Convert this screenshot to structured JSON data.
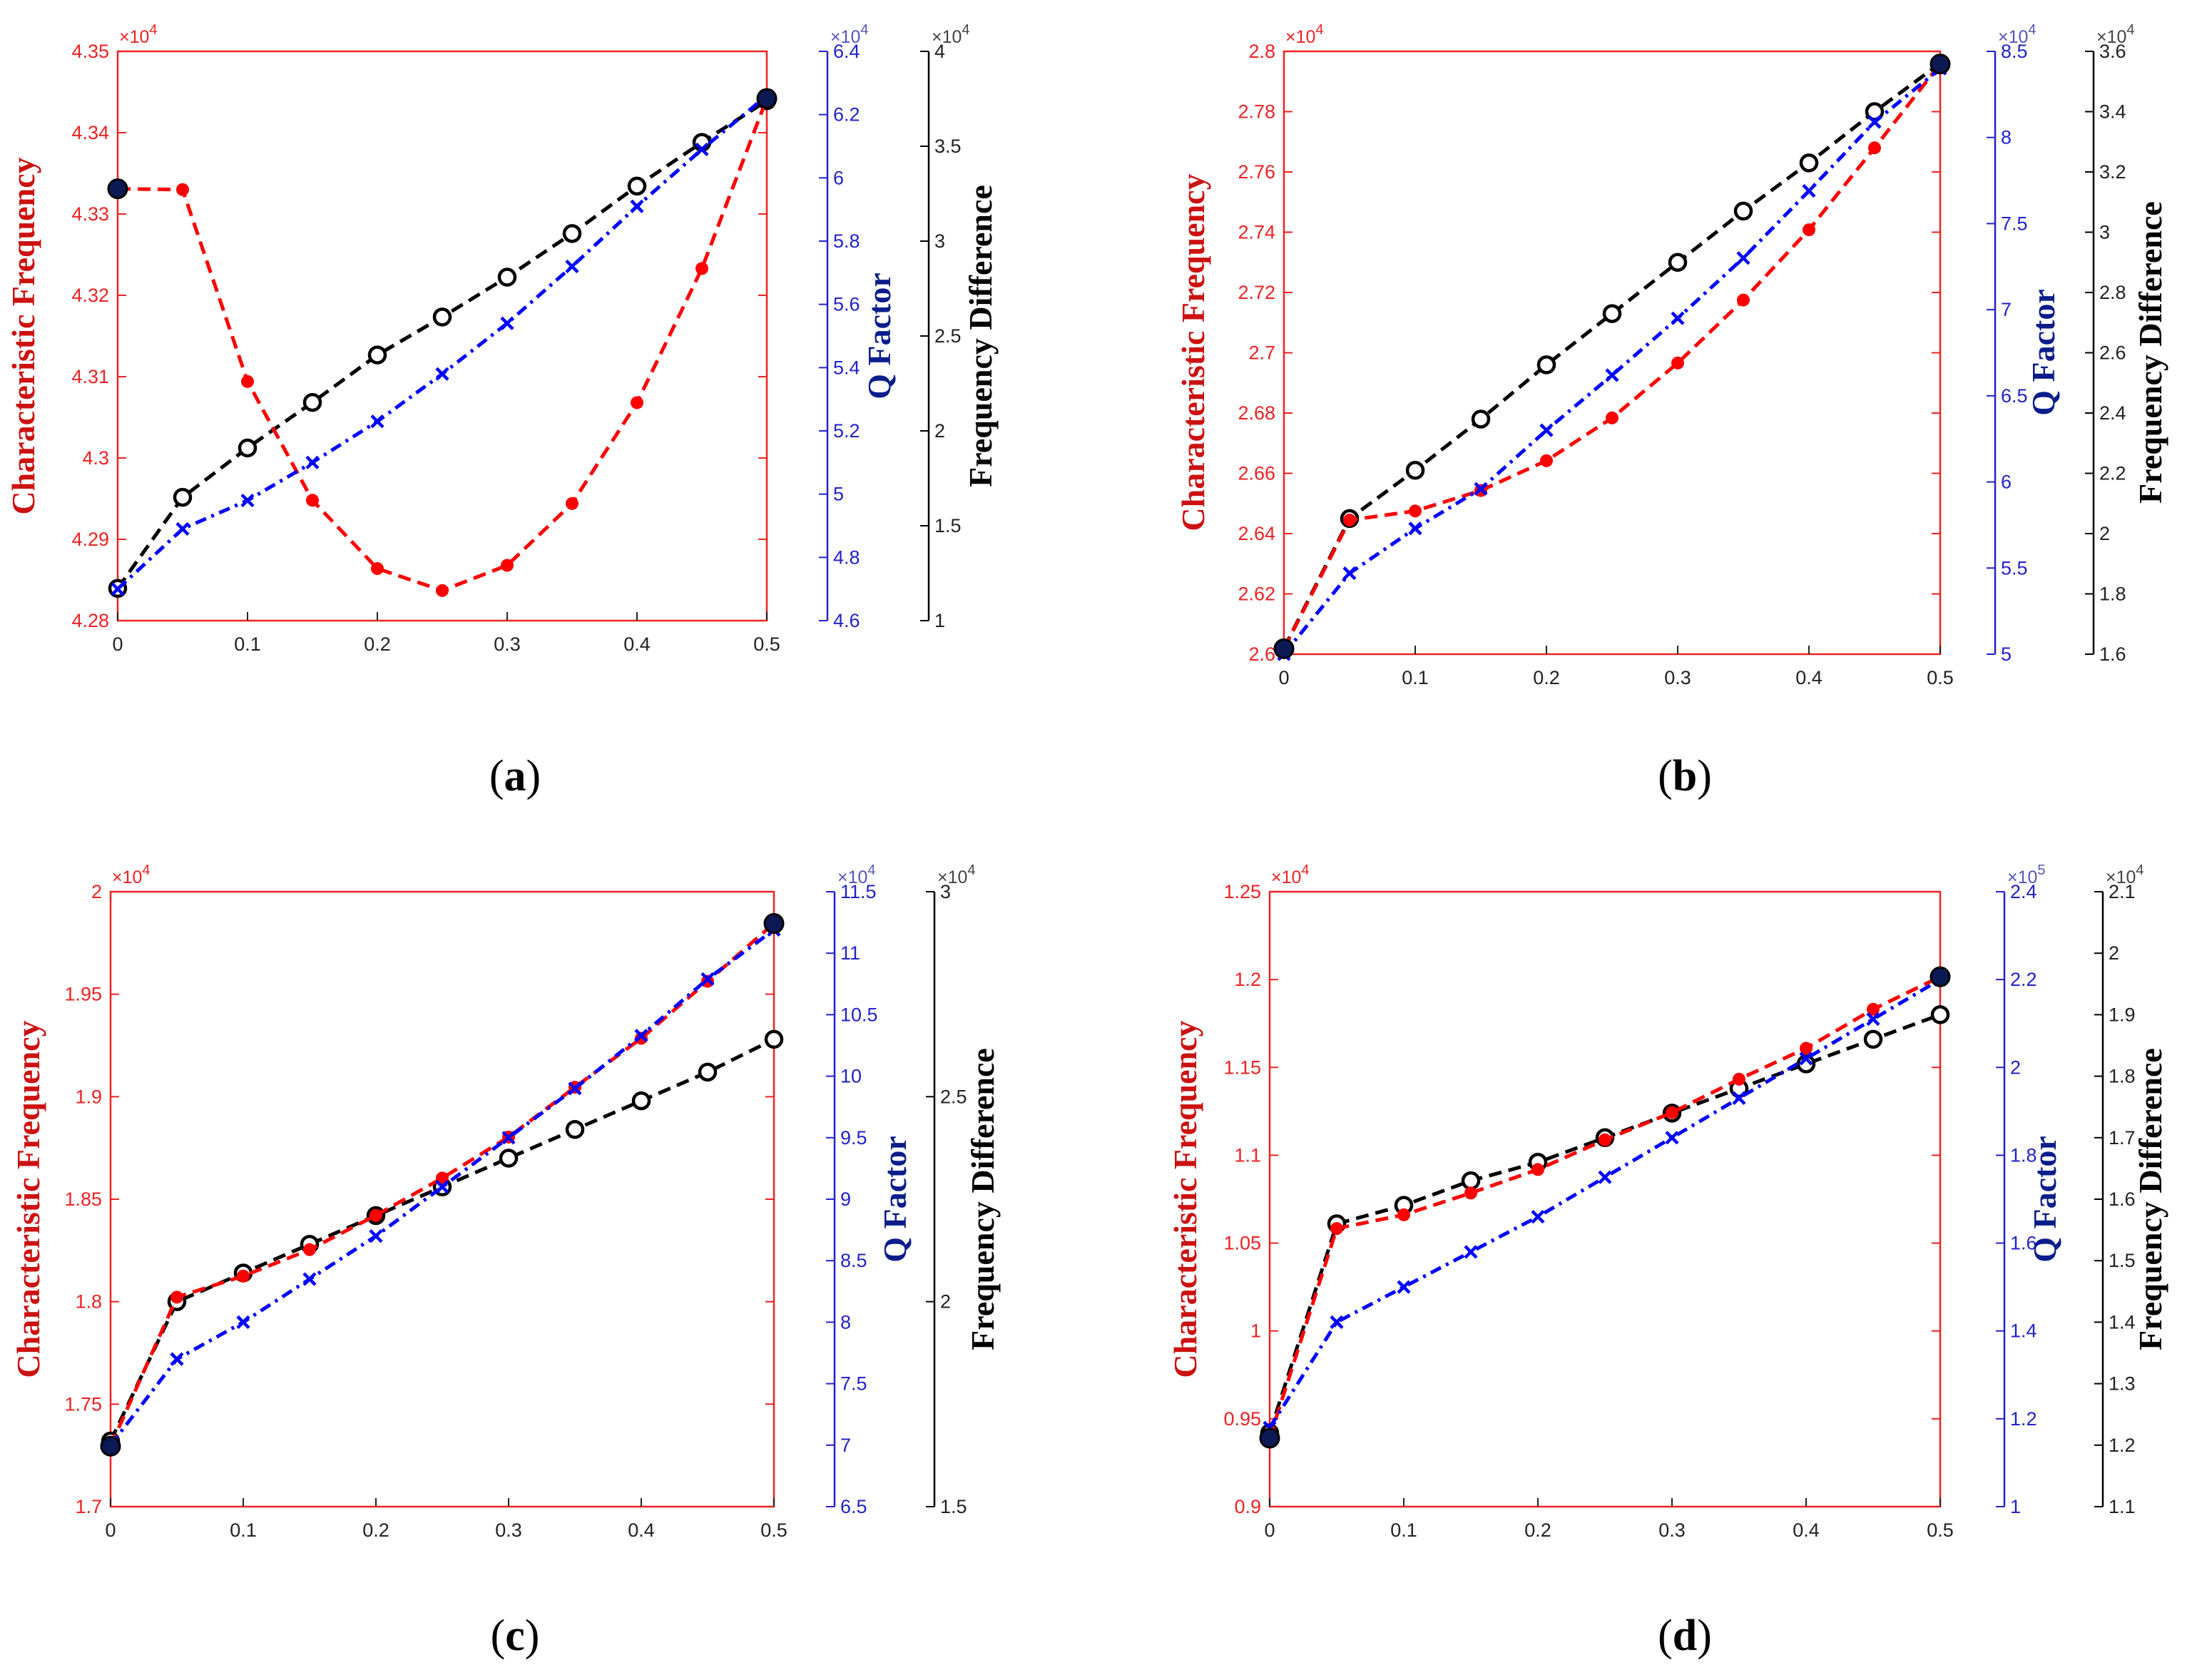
{
  "colors": {
    "freq": "#ff0000",
    "q": "#0000ff",
    "diff": "#000000",
    "axis_red": "#ee2222",
    "axis_blue": "#2222cc",
    "exp_blue": "#5555bb"
  },
  "chart_data": [
    {
      "type": "line",
      "panel": "(a)",
      "panel_letter": "a",
      "x": [
        0,
        0.05,
        0.1,
        0.15,
        0.2,
        0.25,
        0.3,
        0.35,
        0.4,
        0.45,
        0.5
      ],
      "xlim": [
        0,
        0.5
      ],
      "xticks": [
        "0",
        "0.1",
        "0.2",
        "0.3",
        "0.4",
        "0.5"
      ],
      "xtick_values": [
        0,
        0.1,
        0.2,
        0.3,
        0.4,
        0.5
      ],
      "axes": {
        "freq": {
          "label": "Characteristic Frequency",
          "exp": "×10",
          "exp_pow": "4",
          "lim": [
            4.28,
            4.35
          ],
          "ticks": [
            "4.28",
            "4.29",
            "4.3",
            "4.31",
            "4.32",
            "4.33",
            "4.34",
            "4.35"
          ],
          "tick_values": [
            4.28,
            4.29,
            4.3,
            4.31,
            4.32,
            4.33,
            4.34,
            4.35
          ]
        },
        "q": {
          "label": "Q Factor",
          "exp": "×10",
          "exp_pow": "4",
          "lim": [
            4.6,
            6.4
          ],
          "ticks": [
            "4.6",
            "4.8",
            "5",
            "5.2",
            "5.4",
            "5.6",
            "5.8",
            "6",
            "6.2",
            "6.4"
          ],
          "tick_values": [
            4.6,
            4.8,
            5.0,
            5.2,
            5.4,
            5.6,
            5.8,
            6.0,
            6.2,
            6.4
          ]
        },
        "diff": {
          "label": "Frequency Difference",
          "exp": "×10",
          "exp_pow": "4",
          "lim": [
            1,
            4
          ],
          "ticks": [
            "1",
            "1.5",
            "2",
            "2.5",
            "3",
            "3.5",
            "4"
          ],
          "tick_values": [
            1,
            1.5,
            2,
            2.5,
            3,
            3.5,
            4
          ]
        }
      },
      "series": [
        {
          "name": "Characteristic Frequency",
          "axis": "freq",
          "marker": "dot",
          "style": "dashed",
          "values": [
            4.3331,
            4.333,
            4.3094,
            4.2948,
            4.2864,
            4.2837,
            4.2868,
            4.2944,
            4.3068,
            4.3233,
            4.3442
          ]
        },
        {
          "name": "Q Factor",
          "axis": "q",
          "marker": "x",
          "style": "dashdot",
          "values": [
            4.7,
            4.89,
            4.98,
            5.1,
            5.23,
            5.38,
            5.54,
            5.72,
            5.91,
            6.09,
            6.26
          ]
        },
        {
          "name": "Frequency Difference",
          "axis": "diff",
          "marker": "circle",
          "style": "dashed",
          "values": [
            1.17,
            1.65,
            1.91,
            2.15,
            2.4,
            2.6,
            2.81,
            3.04,
            3.29,
            3.52,
            3.74
          ]
        }
      ]
    },
    {
      "type": "line",
      "panel": "(b)",
      "panel_letter": "b",
      "x": [
        0,
        0.05,
        0.1,
        0.15,
        0.2,
        0.25,
        0.3,
        0.35,
        0.4,
        0.45,
        0.5
      ],
      "xlim": [
        0,
        0.5
      ],
      "xticks": [
        "0",
        "0.1",
        "0.2",
        "0.3",
        "0.4",
        "0.5"
      ],
      "xtick_values": [
        0,
        0.1,
        0.2,
        0.3,
        0.4,
        0.5
      ],
      "axes": {
        "freq": {
          "label": "Characteristic Frequency",
          "exp": "×10",
          "exp_pow": "4",
          "lim": [
            2.6,
            2.8
          ],
          "ticks": [
            "2.6",
            "2.62",
            "2.64",
            "2.66",
            "2.68",
            "2.7",
            "2.72",
            "2.74",
            "2.76",
            "2.78",
            "2.8"
          ],
          "tick_values": [
            2.6,
            2.62,
            2.64,
            2.66,
            2.68,
            2.7,
            2.72,
            2.74,
            2.76,
            2.78,
            2.8
          ]
        },
        "q": {
          "label": "Q Factor",
          "exp": "×10",
          "exp_pow": "4",
          "lim": [
            5,
            8.5
          ],
          "ticks": [
            "5",
            "5.5",
            "6",
            "6.5",
            "7",
            "7.5",
            "8",
            "8.5"
          ],
          "tick_values": [
            5,
            5.5,
            6,
            6.5,
            7,
            7.5,
            8,
            8.5
          ]
        },
        "diff": {
          "label": "Frequency Difference",
          "exp": "×10",
          "exp_pow": "4",
          "lim": [
            1.6,
            3.6
          ],
          "ticks": [
            "1.6",
            "1.8",
            "2",
            "2.2",
            "2.4",
            "2.6",
            "2.8",
            "3",
            "3.2",
            "3.4",
            "3.6"
          ],
          "tick_values": [
            1.6,
            1.8,
            2.0,
            2.2,
            2.4,
            2.6,
            2.8,
            3.0,
            3.2,
            3.4,
            3.6
          ]
        }
      },
      "series": [
        {
          "name": "Characteristic Frequency",
          "axis": "freq",
          "marker": "dot",
          "style": "dashed",
          "values": [
            2.6018,
            2.6445,
            2.6475,
            2.6543,
            2.6642,
            2.6784,
            2.6966,
            2.7175,
            2.7408,
            2.768,
            2.7958
          ]
        },
        {
          "name": "Q Factor",
          "axis": "q",
          "marker": "x",
          "style": "dashdot",
          "values": [
            5.0,
            5.47,
            5.73,
            5.96,
            6.3,
            6.62,
            6.95,
            7.3,
            7.69,
            8.09,
            8.4
          ]
        },
        {
          "name": "Frequency Difference",
          "axis": "diff",
          "marker": "circle",
          "style": "dashed",
          "values": [
            1.62,
            2.05,
            2.21,
            2.38,
            2.56,
            2.73,
            2.9,
            3.07,
            3.23,
            3.4,
            3.56
          ]
        }
      ]
    },
    {
      "type": "line",
      "panel": "(c)",
      "panel_letter": "c",
      "x": [
        0,
        0.05,
        0.1,
        0.15,
        0.2,
        0.25,
        0.3,
        0.35,
        0.4,
        0.45,
        0.5
      ],
      "xlim": [
        0,
        0.5
      ],
      "xticks": [
        "0",
        "0.1",
        "0.2",
        "0.3",
        "0.4",
        "0.5"
      ],
      "xtick_values": [
        0,
        0.1,
        0.2,
        0.3,
        0.4,
        0.5
      ],
      "axes": {
        "freq": {
          "label": "Characteristic Frequency",
          "exp": "×10",
          "exp_pow": "4",
          "lim": [
            1.7,
            2.0
          ],
          "ticks": [
            "1.7",
            "1.75",
            "1.8",
            "1.85",
            "1.9",
            "1.95",
            "2"
          ],
          "tick_values": [
            1.7,
            1.75,
            1.8,
            1.85,
            1.9,
            1.95,
            2.0
          ]
        },
        "q": {
          "label": "Q Factor",
          "exp": "×10",
          "exp_pow": "4",
          "lim": [
            6.5,
            11.5
          ],
          "ticks": [
            "6.5",
            "7",
            "7.5",
            "8",
            "8.5",
            "9",
            "9.5",
            "10",
            "10.5",
            "11",
            "11.5"
          ],
          "tick_values": [
            6.5,
            7,
            7.5,
            8,
            8.5,
            9,
            9.5,
            10,
            10.5,
            11,
            11.5
          ]
        },
        "diff": {
          "label": "Frequency Difference",
          "exp": "×10",
          "exp_pow": "4",
          "lim": [
            1.5,
            3
          ],
          "ticks": [
            "1.5",
            "2",
            "2.5",
            "3"
          ],
          "tick_values": [
            1.5,
            2,
            2.5,
            3
          ]
        }
      },
      "series": [
        {
          "name": "Characteristic Frequency",
          "axis": "freq",
          "marker": "dot",
          "style": "dashed",
          "values": [
            1.7295,
            1.8022,
            1.8125,
            1.8254,
            1.8421,
            1.8603,
            1.8803,
            1.9046,
            1.9285,
            1.9563,
            1.9845
          ]
        },
        {
          "name": "Q Factor",
          "axis": "q",
          "marker": "x",
          "style": "dashdot",
          "values": [
            7.0,
            7.7,
            8.0,
            8.35,
            8.7,
            9.1,
            9.5,
            9.9,
            10.33,
            10.79,
            11.19
          ]
        },
        {
          "name": "Frequency Difference",
          "axis": "diff",
          "marker": "circle",
          "style": "dashed",
          "values": [
            1.66,
            2.0,
            2.07,
            2.14,
            2.21,
            2.28,
            2.35,
            2.42,
            2.49,
            2.56,
            2.64
          ]
        }
      ]
    },
    {
      "type": "line",
      "panel": "(d)",
      "panel_letter": "d",
      "x": [
        0,
        0.05,
        0.1,
        0.15,
        0.2,
        0.25,
        0.3,
        0.35,
        0.4,
        0.45,
        0.5
      ],
      "xlim": [
        0,
        0.5
      ],
      "xticks": [
        "0",
        "0.1",
        "0.2",
        "0.3",
        "0.4",
        "0.5"
      ],
      "xtick_values": [
        0,
        0.1,
        0.2,
        0.3,
        0.4,
        0.5
      ],
      "axes": {
        "freq": {
          "label": "Characteristic Frequency",
          "exp": "×10",
          "exp_pow": "4",
          "lim": [
            0.9,
            1.25
          ],
          "ticks": [
            "0.9",
            "0.95",
            "1",
            "1.05",
            "1.1",
            "1.15",
            "1.2",
            "1.25"
          ],
          "tick_values": [
            0.9,
            0.95,
            1.0,
            1.05,
            1.1,
            1.15,
            1.2,
            1.25
          ]
        },
        "q": {
          "label": "Q Factor",
          "exp": "×10",
          "exp_pow": "5",
          "lim": [
            1,
            2.4
          ],
          "ticks": [
            "1",
            "1.2",
            "1.4",
            "1.6",
            "1.8",
            "2",
            "2.2",
            "2.4"
          ],
          "tick_values": [
            1.0,
            1.2,
            1.4,
            1.6,
            1.8,
            2.0,
            2.2,
            2.4
          ]
        },
        "diff": {
          "label": "Frequency Difference",
          "exp": "×10",
          "exp_pow": "4",
          "lim": [
            1.1,
            2.1
          ],
          "ticks": [
            "1.1",
            "1.2",
            "1.3",
            "1.4",
            "1.5",
            "1.6",
            "1.7",
            "1.8",
            "1.9",
            "2",
            "2.1"
          ],
          "tick_values": [
            1.1,
            1.2,
            1.3,
            1.4,
            1.5,
            1.6,
            1.7,
            1.8,
            1.9,
            2.0,
            2.1
          ]
        }
      },
      "series": [
        {
          "name": "Characteristic Frequency",
          "axis": "freq",
          "marker": "dot",
          "style": "dashed",
          "values": [
            0.939,
            1.0583,
            1.0661,
            1.0785,
            1.0919,
            1.1088,
            1.1243,
            1.1433,
            1.1609,
            1.1831,
            1.2016
          ]
        },
        {
          "name": "Q Factor",
          "axis": "q",
          "marker": "x",
          "style": "dashdot",
          "values": [
            1.18,
            1.42,
            1.5,
            1.58,
            1.66,
            1.75,
            1.84,
            1.93,
            2.02,
            2.11,
            2.2
          ]
        },
        {
          "name": "Frequency Difference",
          "axis": "diff",
          "marker": "circle",
          "style": "dashed",
          "values": [
            1.22,
            1.56,
            1.59,
            1.63,
            1.66,
            1.7,
            1.74,
            1.78,
            1.82,
            1.86,
            1.9
          ]
        }
      ]
    }
  ]
}
